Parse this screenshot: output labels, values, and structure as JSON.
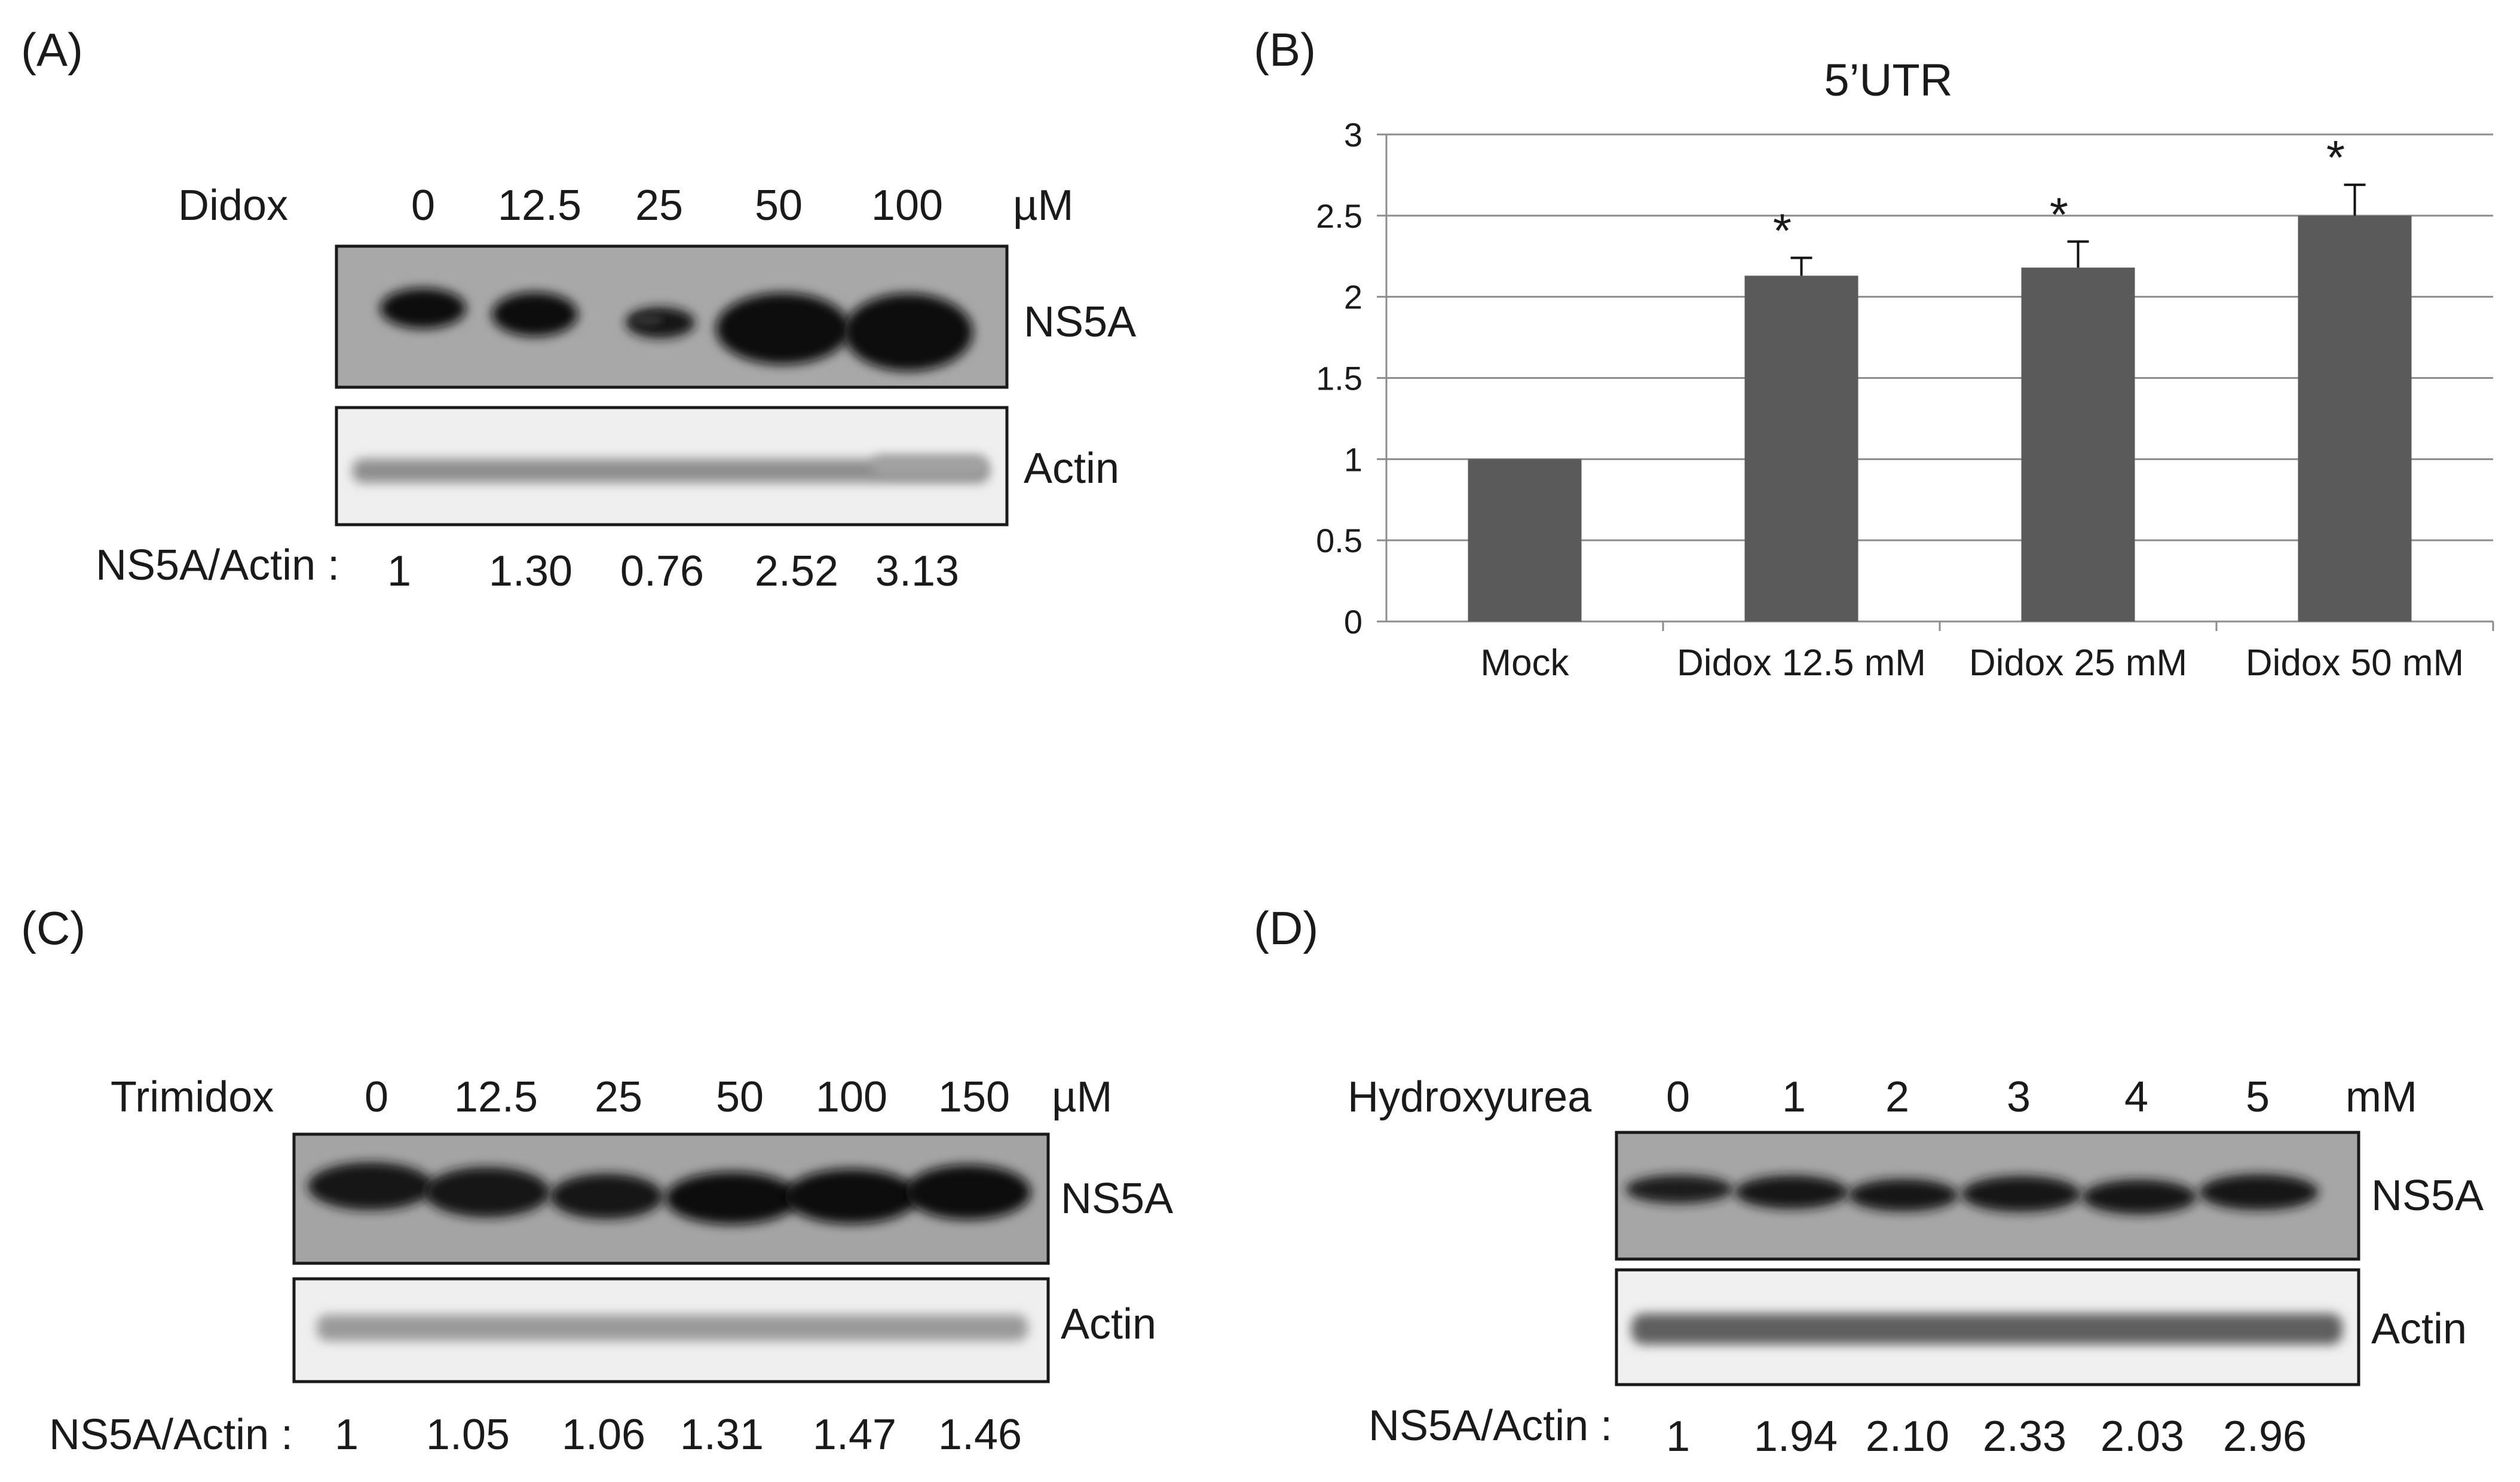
{
  "panels": {
    "A": {
      "letter": "(A)",
      "treatment_label": "Didox",
      "doses": [
        "0",
        "12.5",
        "25",
        "50",
        "100"
      ],
      "unit": "µM",
      "blot_labels": [
        "NS5A",
        "Actin"
      ],
      "ratio_label": "NS5A/Actin :",
      "ratios": [
        "1",
        "1.30",
        "0.76",
        "2.52",
        "3.13"
      ]
    },
    "C": {
      "letter": "(C)",
      "treatment_label": "Trimidox",
      "doses": [
        "0",
        "12.5",
        "25",
        "50",
        "100",
        "150"
      ],
      "unit": "µM",
      "blot_labels": [
        "NS5A",
        "Actin"
      ],
      "ratio_label": "NS5A/Actin :",
      "ratios": [
        "1",
        "1.05",
        "1.06",
        "1.31",
        "1.47",
        "1.46"
      ]
    },
    "D": {
      "letter": "(D)",
      "treatment_label": "Hydroxyurea",
      "doses": [
        "0",
        "1",
        "2",
        "3",
        "4",
        "5"
      ],
      "unit": "mM",
      "blot_labels": [
        "NS5A",
        "Actin"
      ],
      "ratio_label": "NS5A/Actin :",
      "ratios": [
        "1",
        "1.94",
        "2.10",
        "2.33",
        "2.03",
        "2.96"
      ]
    }
  },
  "chart_panel": {
    "letter": "(B)"
  },
  "chart_data": {
    "type": "bar",
    "title": "5’UTR",
    "categories": [
      "Mock",
      "Didox 12.5 mM",
      "Didox 25 mM",
      "Didox 50 mM"
    ],
    "values": [
      1.0,
      2.13,
      2.18,
      2.5
    ],
    "errors": [
      0.0,
      0.11,
      0.16,
      0.19
    ],
    "significance": [
      "",
      "*",
      "*",
      "*"
    ],
    "ylim": [
      0,
      3
    ],
    "yticks": [
      0,
      0.5,
      1,
      1.5,
      2,
      2.5,
      3
    ],
    "ytick_labels": [
      "0",
      "0.5",
      "1",
      "1.5",
      "2",
      "2.5",
      "3"
    ],
    "grid": true,
    "colors": {
      "bar": "#5a5a5a",
      "grid": "#8c8c8c"
    }
  },
  "blot_colors": {
    "frame": "#1a1a1a",
    "ns5a_bg": "#a6a6a6",
    "actin_bg": "#ededed",
    "band_dark": "#101010",
    "band_actin": "#8e8e8e"
  }
}
